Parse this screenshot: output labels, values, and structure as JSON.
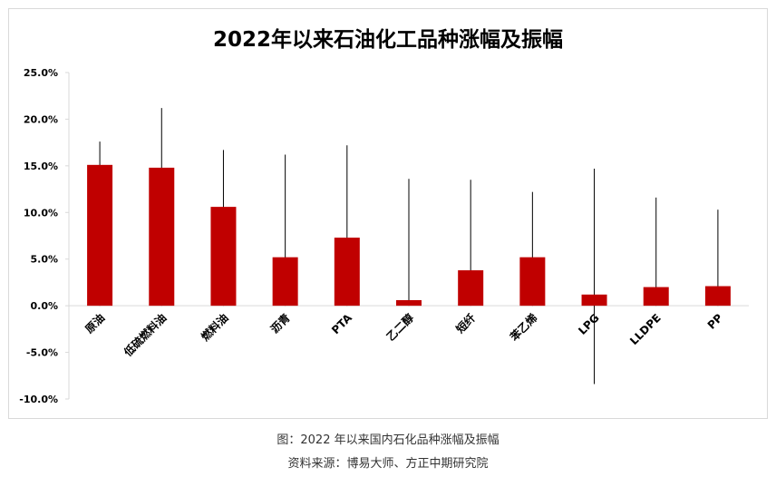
{
  "chart_data": {
    "type": "bar",
    "title": "2022年以来石油化工品种涨幅及振幅",
    "categories": [
      "原油",
      "低硫燃料油",
      "燃料油",
      "沥青",
      "PTA",
      "乙二醇",
      "短纤",
      "苯乙烯",
      "LPG",
      "LLDPE",
      "PP"
    ],
    "values": [
      15.1,
      14.8,
      10.6,
      5.2,
      7.3,
      0.6,
      3.8,
      5.2,
      1.2,
      2.0,
      2.1
    ],
    "range_high": [
      17.6,
      21.2,
      16.7,
      16.2,
      17.2,
      13.6,
      13.5,
      12.2,
      14.7,
      11.6,
      10.3
    ],
    "range_low": [
      0,
      0,
      0,
      0,
      0,
      0,
      0,
      0,
      -8.4,
      0,
      0
    ],
    "ylim": [
      -10,
      25
    ],
    "yticks": [
      -10,
      -5,
      0,
      5,
      10,
      15,
      20,
      25
    ],
    "ytick_labels": [
      "-10.0%",
      "-5.0%",
      "0.0%",
      "5.0%",
      "10.0%",
      "15.0%",
      "20.0%",
      "25.0%"
    ],
    "xlabel": "",
    "ylabel": "",
    "grid": false,
    "bar_color": "#c00000"
  },
  "caption": {
    "line1": "图：2022 年以来国内石化品种涨幅及振幅",
    "line2": "资料来源：博易大师、方正中期研究院"
  }
}
